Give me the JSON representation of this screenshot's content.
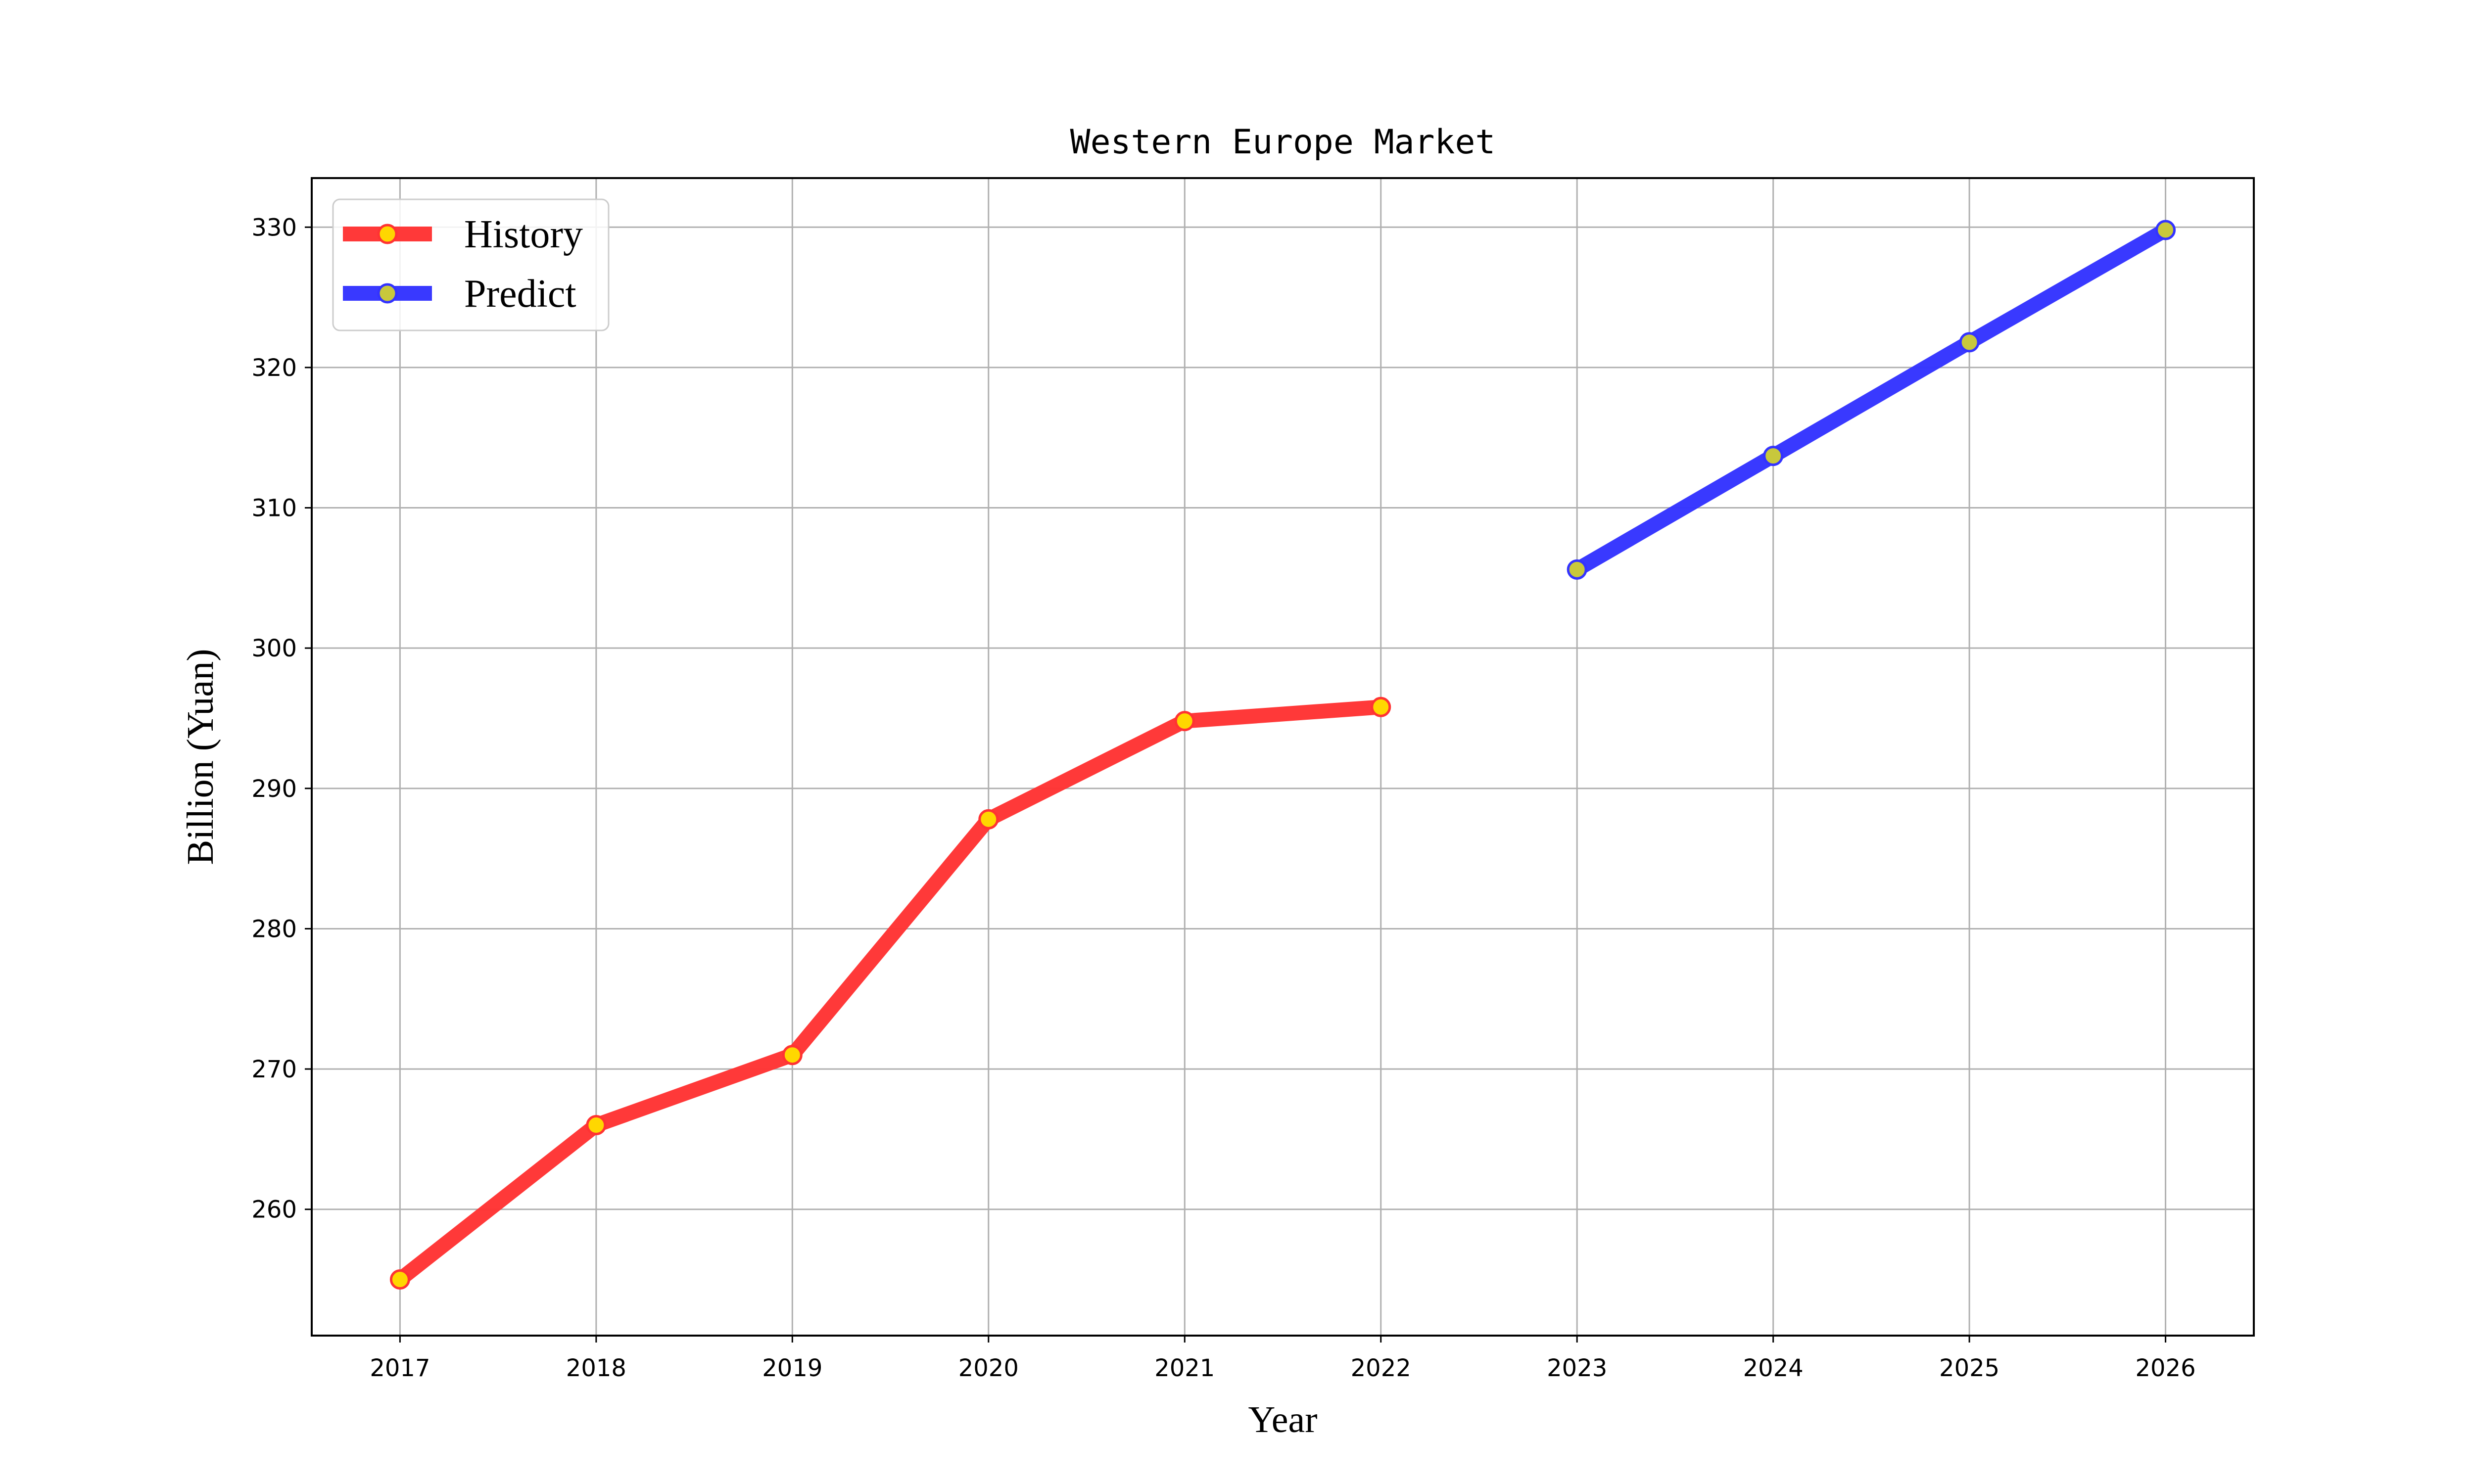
{
  "chart_data": {
    "type": "line",
    "title": "Western Europe Market",
    "xlabel": "Year",
    "ylabel": "Billion (Yuan)",
    "x_ticks": [
      "2017",
      "2018",
      "2019",
      "2020",
      "2021",
      "2022",
      "2023",
      "2024",
      "2025",
      "2026"
    ],
    "y_ticks": [
      260,
      270,
      280,
      290,
      300,
      310,
      320,
      330
    ],
    "xlim": [
      2016.55,
      2026.45
    ],
    "ylim": [
      251.0,
      333.5
    ],
    "grid": true,
    "legend_position": "top-left",
    "series": [
      {
        "name": "History",
        "color": "#ff3333",
        "marker_face": "#ffd700",
        "marker_edge": "#ff3333",
        "x": [
          2017,
          2018,
          2019,
          2020,
          2021,
          2022
        ],
        "values": [
          255.0,
          266.0,
          271.0,
          287.8,
          294.8,
          295.8
        ]
      },
      {
        "name": "Predict",
        "color": "#3333ff",
        "marker_face": "#c8c83c",
        "marker_edge": "#3333ff",
        "x": [
          2023,
          2024,
          2025,
          2026
        ],
        "values": [
          305.6,
          313.7,
          321.8,
          329.8
        ]
      }
    ]
  }
}
